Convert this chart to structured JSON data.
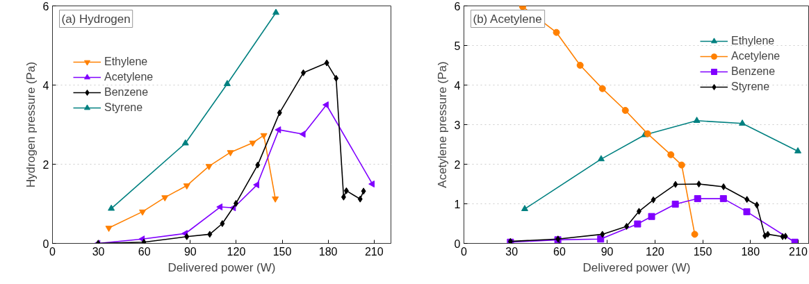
{
  "chart_data": [
    {
      "type": "line",
      "title": "(a) Hydrogen",
      "xlabel": "Delivered power (W)",
      "ylabel": "Hydrogen pressure (Pa)",
      "xlim": [
        0,
        221
      ],
      "xticks": [
        0,
        30,
        60,
        90,
        120,
        150,
        180,
        210
      ],
      "ylim": [
        0,
        6
      ],
      "yticks": [
        0,
        2,
        4,
        6
      ],
      "grid": "y",
      "legend": "top left",
      "series": [
        {
          "name": "Ethylene",
          "color": "#ff8000",
          "marker": "triangle-down",
          "x": [
            36.8,
            58.8,
            73.4,
            87.7,
            102.2,
            116.2,
            130.7,
            138,
            145.5
          ],
          "values": [
            0.39,
            0.8,
            1.16,
            1.46,
            1.95,
            2.3,
            2.54,
            2.73,
            1.13
          ]
        },
        {
          "name": "Acetylene",
          "color": "#8000ff",
          "marker": "triangle-left",
          "x": [
            29.8,
            58.8,
            86.8,
            109.6,
            118.3,
            133.6,
            147.8,
            163.8,
            178.9,
            208.9
          ],
          "values": [
            0,
            0.11,
            0.25,
            0.92,
            0.9,
            1.48,
            2.87,
            2.76,
            3.5,
            1.5
          ]
        },
        {
          "name": "Benzene",
          "color": "#000000",
          "marker": "diamond",
          "x": [
            29.8,
            59.7,
            87.7,
            102.7,
            110.9,
            119.8,
            134,
            148.3,
            163.8,
            179.1,
            185.2,
            190.1,
            191.9,
            200.9,
            203.1
          ],
          "values": [
            0,
            0.03,
            0.17,
            0.23,
            0.5,
            1.01,
            1.98,
            3.3,
            4.31,
            4.56,
            4.17,
            1.17,
            1.33,
            1.12,
            1.32
          ]
        },
        {
          "name": "Styrene",
          "color": "#008080",
          "marker": "triangle",
          "x": [
            38.4,
            86.8,
            114.1,
            145.9
          ],
          "values": [
            0.88,
            2.53,
            4.03,
            5.83
          ]
        }
      ]
    },
    {
      "type": "line",
      "title": "(b) Acetylene",
      "xlabel": "Delivered power (W)",
      "ylabel": "Acetylene pressure (Pa)",
      "xlim": [
        0,
        217
      ],
      "xticks": [
        0,
        30,
        60,
        90,
        120,
        150,
        180,
        210
      ],
      "ylim": [
        0,
        6
      ],
      "yticks": [
        0,
        1,
        2,
        3,
        4,
        5,
        6
      ],
      "grid": "y",
      "legend": "top right",
      "series": [
        {
          "name": "Ethylene",
          "color": "#008080",
          "marker": "triangle",
          "x": [
            38.2,
            86.2,
            113.6,
            146.3,
            174.9,
            209.8
          ],
          "values": [
            0.87,
            2.13,
            2.74,
            3.1,
            3.03,
            2.33
          ]
        },
        {
          "name": "Acetylene",
          "color": "#ff8000",
          "marker": "circle",
          "x": [
            36.9,
            58.1,
            73,
            87,
            101.4,
            115.4,
            130,
            136.8,
            145
          ],
          "values": [
            5.98,
            5.33,
            4.5,
            3.91,
            3.36,
            2.77,
            2.24,
            1.98,
            0.23
          ]
        },
        {
          "name": "Benzene",
          "color": "#8000ff",
          "marker": "square",
          "x": [
            29.2,
            59,
            85.9,
            109.1,
            117.9,
            132.8,
            146.8,
            163,
            177.7,
            207.9
          ],
          "values": [
            0.03,
            0.09,
            0.11,
            0.49,
            0.68,
            0.99,
            1.13,
            1.13,
            0.8,
            0.03
          ]
        },
        {
          "name": "Styrene",
          "color": "#000000",
          "marker": "diamond",
          "x": [
            29.2,
            59.1,
            87,
            102.2,
            110,
            119,
            132.9,
            147.6,
            163.1,
            177.8,
            184,
            189.1,
            190.9,
            200.2,
            202
          ],
          "values": [
            0.05,
            0.11,
            0.23,
            0.43,
            0.81,
            1.1,
            1.49,
            1.5,
            1.43,
            1.11,
            0.97,
            0.19,
            0.23,
            0.17,
            0.18
          ]
        }
      ]
    }
  ]
}
